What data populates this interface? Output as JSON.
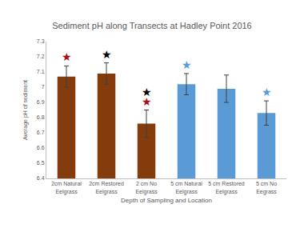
{
  "chart_data": {
    "type": "bar",
    "title": "Sediment pH along Transects at Hadley Point 2016",
    "x_label": "Depth of Sampling and Location",
    "y_label": "Average pH of sediment",
    "categories": [
      "2cm Natural Eelgrass",
      "2cm Restored Eelgrass",
      "2 cm No Eelgrass",
      "5 cm Natural Eelgrass",
      "5 cm Restored Eelgrass",
      "5 cm No Eegrass"
    ],
    "values": [
      7.07,
      7.09,
      6.76,
      7.02,
      6.99,
      6.83
    ],
    "errors": [
      0.07,
      0.07,
      0.09,
      0.07,
      0.09,
      0.08
    ],
    "colors": [
      "#843c0c",
      "#843c0c",
      "#843c0c",
      "#5b9bd5",
      "#5b9bd5",
      "#5b9bd5"
    ],
    "ylim": [
      6.4,
      7.3
    ],
    "yticks": [
      6.4,
      6.5,
      6.6,
      6.7,
      6.8,
      6.9,
      7,
      7.1,
      7.2,
      7.3
    ],
    "grid": false,
    "annotations": [
      {
        "category": "2cm Natural Eelgrass",
        "text": "★",
        "color": "#a50f15"
      },
      {
        "category": "2cm Restored Eelgrass",
        "text": "★",
        "color": "#000000"
      },
      {
        "category": "2 cm No Eelgrass",
        "text": "★",
        "color": "#a50f15"
      },
      {
        "category": "2 cm No Eelgrass",
        "text": "★",
        "color": "#000000"
      },
      {
        "category": "5 cm Natural Eelgrass",
        "text": "★",
        "color": "#5b9bd5"
      },
      {
        "category": "5 cm No Eegrass",
        "text": "★",
        "color": "#5b9bd5"
      }
    ]
  }
}
